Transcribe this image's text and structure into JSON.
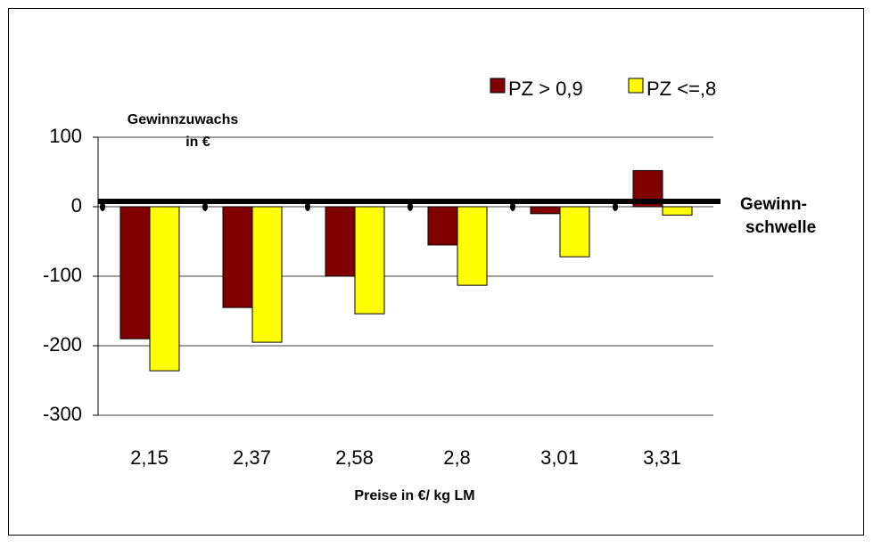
{
  "chart_data": {
    "type": "bar",
    "categories": [
      "2,15",
      "2,37",
      "2,58",
      "2,8",
      "3,01",
      "3,31"
    ],
    "series": [
      {
        "name": "PZ > 0,9",
        "color": "#800000",
        "values": [
          -190,
          -145,
          -100,
          -55,
          -10,
          52
        ]
      },
      {
        "name": "PZ <=,8",
        "color": "#ffff00",
        "values": [
          -236,
          -195,
          -154,
          -113,
          -72,
          -12
        ]
      }
    ],
    "ylim": [
      -300,
      100
    ],
    "yticks": [
      -300,
      -200,
      -100,
      0,
      100
    ],
    "grid": true,
    "ylabel_lines": [
      "Gewinnzuwachs",
      "in €"
    ],
    "xlabel": "Preise in €/ kg LM",
    "annotation_lines": [
      "Gewinn-",
      "schwelle"
    ],
    "legend": "top-right"
  }
}
